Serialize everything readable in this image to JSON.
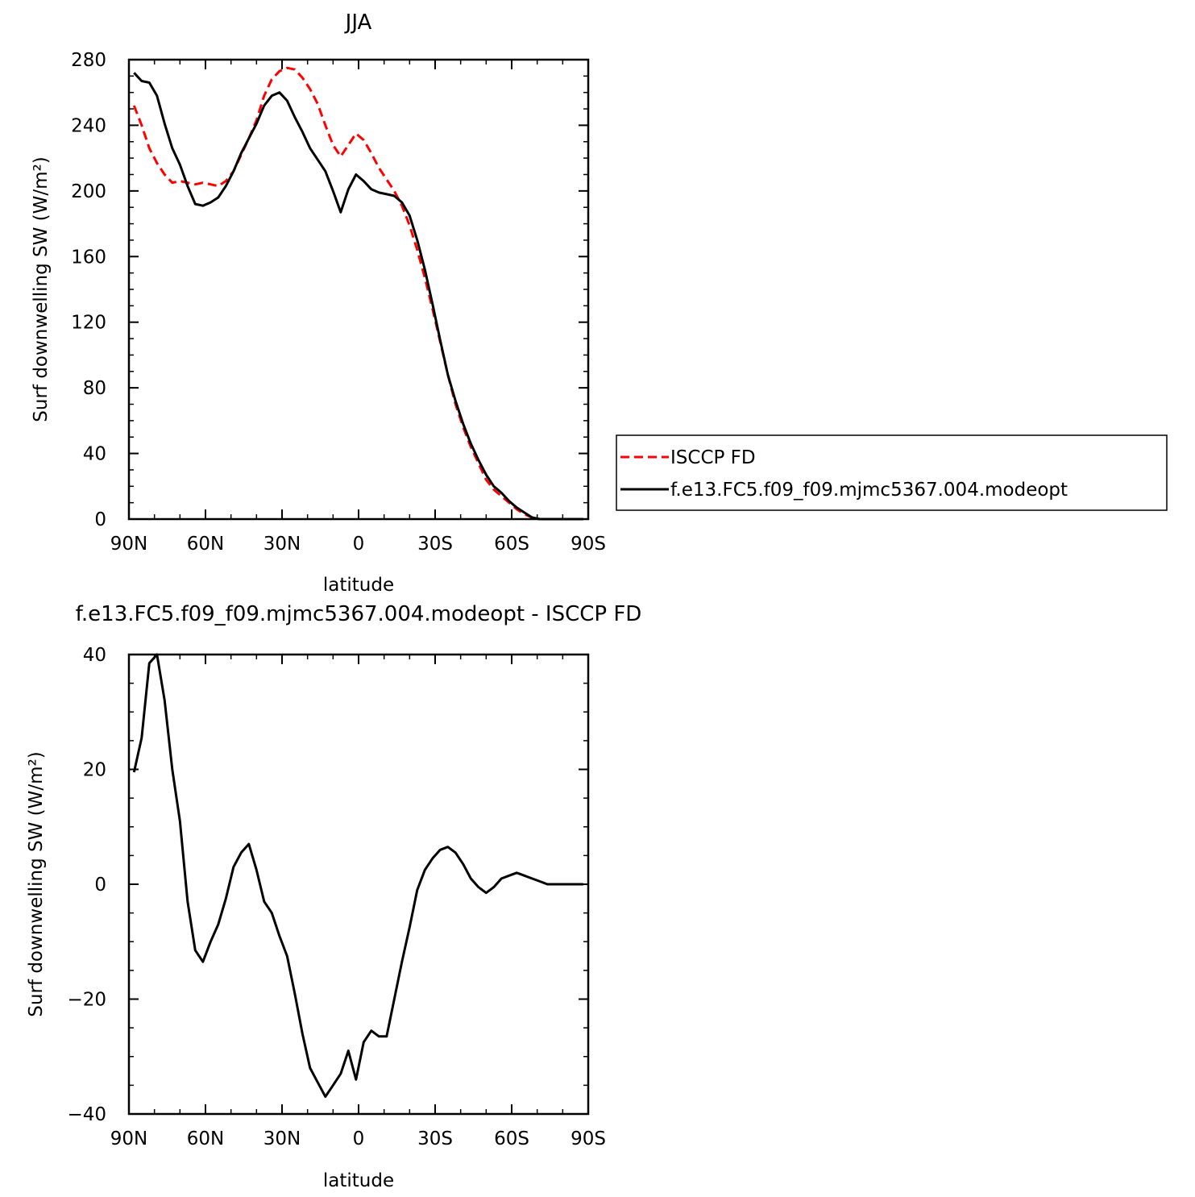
{
  "chart_data": [
    {
      "type": "line",
      "title": "JJA",
      "xlabel": "latitude",
      "ylabel": "Surf downwelling SW (W/m²)",
      "xlim": [
        90,
        -90
      ],
      "ylim": [
        0,
        280
      ],
      "xticks": [
        90,
        60,
        30,
        0,
        -30,
        -60,
        -90
      ],
      "xtick_labels": [
        "90N",
        "60N",
        "30N",
        "0",
        "30S",
        "60S",
        "90S"
      ],
      "yticks": [
        0,
        40,
        80,
        120,
        160,
        200,
        240,
        280
      ],
      "ytick_labels": [
        "0",
        "40",
        "80",
        "120",
        "160",
        "200",
        "240",
        "280"
      ],
      "legend_position": "right",
      "series": [
        {
          "name": "ISCCP FD",
          "color": "#ff0000",
          "dash": "dashed",
          "x": [
            88,
            85,
            82,
            79,
            76,
            73,
            70,
            67,
            64,
            61,
            58,
            55,
            52,
            49,
            46,
            43,
            40,
            37,
            34,
            31,
            28,
            25,
            22,
            19,
            16,
            13,
            10,
            7,
            4,
            1,
            -2,
            -5,
            -8,
            -11,
            -14,
            -17,
            -20,
            -23,
            -26,
            -29,
            -32,
            -35,
            -38,
            -41,
            -44,
            -47,
            -50,
            -53,
            -56,
            -59,
            -62,
            -65,
            -68,
            -71,
            -74,
            -77,
            -80,
            -83,
            -86,
            -88
          ],
          "y": [
            252,
            240,
            226,
            217,
            210,
            205,
            206,
            205,
            204,
            205,
            204,
            203,
            206,
            212,
            222,
            232,
            243,
            258,
            268,
            273,
            275,
            274,
            269,
            262,
            253,
            240,
            228,
            221,
            228,
            235,
            231,
            223,
            214,
            207,
            200,
            191,
            179,
            164,
            147,
            128,
            108,
            88,
            70,
            56,
            44,
            34,
            24,
            18,
            14,
            10,
            6,
            3,
            1,
            0,
            0,
            0,
            0,
            0,
            0,
            0
          ]
        },
        {
          "name": "f.e13.FC5.f09_f09.mjmc5367.004.modeopt",
          "color": "#000000",
          "dash": "solid",
          "x": [
            88,
            85,
            82,
            79,
            76,
            73,
            70,
            67,
            64,
            61,
            58,
            55,
            52,
            49,
            46,
            43,
            40,
            37,
            34,
            31,
            28,
            25,
            22,
            19,
            16,
            13,
            10,
            7,
            4,
            1,
            -2,
            -5,
            -8,
            -11,
            -14,
            -17,
            -20,
            -23,
            -26,
            -29,
            -32,
            -35,
            -38,
            -41,
            -44,
            -47,
            -50,
            -53,
            -56,
            -59,
            -62,
            -65,
            -68,
            -71,
            -74,
            -77,
            -80,
            -83,
            -86,
            -88
          ],
          "y": [
            272,
            267,
            266,
            258,
            241,
            226,
            216,
            203,
            192,
            191,
            193,
            196,
            203,
            212,
            223,
            232,
            241,
            252,
            258,
            260,
            255,
            245,
            236,
            226,
            219,
            212,
            200,
            187,
            201,
            210,
            206,
            201,
            199,
            198,
            197,
            193,
            185,
            170,
            152,
            131,
            109,
            88,
            72,
            58,
            46,
            36,
            27,
            20,
            16,
            11,
            7,
            4,
            1,
            0,
            0,
            0,
            0,
            0,
            0,
            0
          ]
        }
      ]
    },
    {
      "type": "line",
      "title": "f.e13.FC5.f09_f09.mjmc5367.004.modeopt - ISCCP FD",
      "xlabel": "latitude",
      "ylabel": "Surf downwelling SW (W/m²)",
      "xlim": [
        90,
        -90
      ],
      "ylim": [
        -40,
        40
      ],
      "xticks": [
        90,
        60,
        30,
        0,
        -30,
        -60,
        -90
      ],
      "xtick_labels": [
        "90N",
        "60N",
        "30N",
        "0",
        "30S",
        "60S",
        "90S"
      ],
      "yticks": [
        -40,
        -20,
        0,
        20,
        40
      ],
      "ytick_labels": [
        "−40",
        "−20",
        "0",
        "20",
        "40"
      ],
      "series": [
        {
          "color": "#000000",
          "dash": "solid",
          "x": [
            88,
            85,
            82,
            79,
            76,
            73,
            70,
            67,
            64,
            61,
            58,
            55,
            52,
            49,
            46,
            43,
            40,
            37,
            34,
            31,
            28,
            25,
            22,
            19,
            16,
            13,
            10,
            7,
            4,
            1,
            -2,
            -5,
            -8,
            -11,
            -14,
            -17,
            -20,
            -23,
            -26,
            -29,
            -32,
            -35,
            -38,
            -41,
            -44,
            -47,
            -50,
            -53,
            -56,
            -59,
            -62,
            -65,
            -68,
            -71,
            -74,
            -77,
            -80,
            -83,
            -86,
            -88
          ],
          "y": [
            19.5,
            25.5,
            38.5,
            40,
            32,
            20,
            11,
            -3,
            -11.5,
            -13.5,
            -10,
            -7,
            -2.5,
            3,
            5.5,
            7,
            2.5,
            -3,
            -5,
            -9,
            -12.5,
            -19,
            -26,
            -32,
            -34.5,
            -37,
            -35,
            -33,
            -29,
            -34,
            -27.5,
            -25.5,
            -26.5,
            -26.5,
            -20,
            -13.5,
            -7.5,
            -1,
            2.5,
            4.5,
            6,
            6.5,
            5.5,
            3.5,
            1,
            -0.5,
            -1.5,
            -0.5,
            1,
            1.5,
            2,
            1.5,
            1,
            0.5,
            0,
            0,
            0,
            0,
            0,
            0
          ]
        }
      ]
    }
  ]
}
